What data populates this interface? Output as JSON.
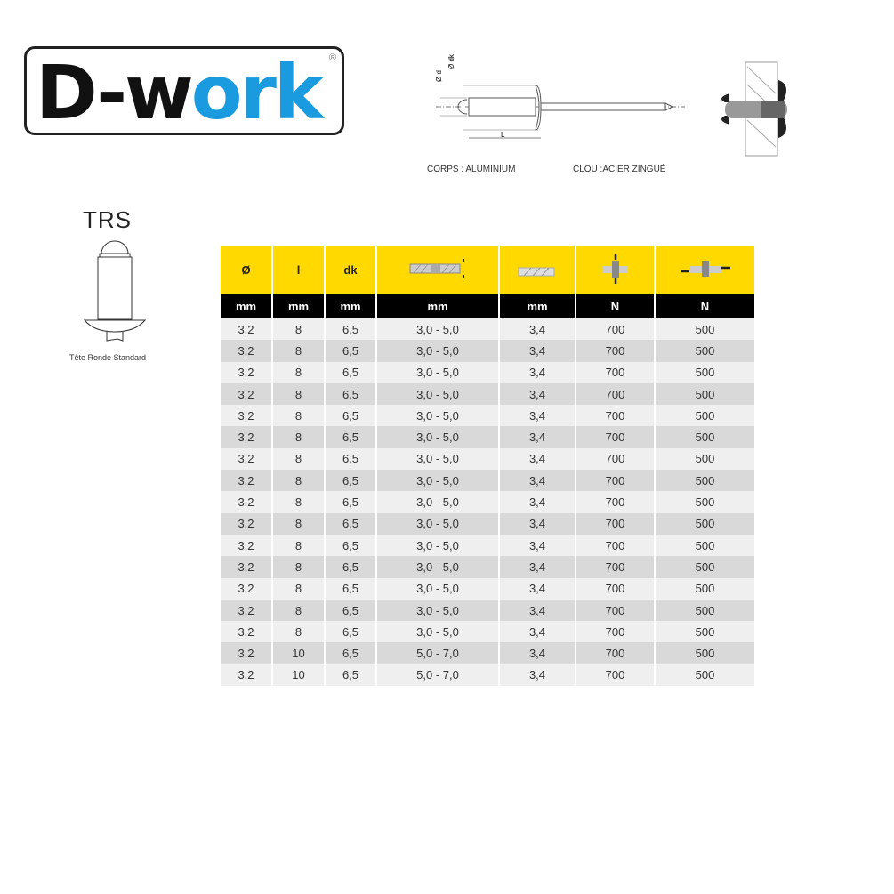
{
  "logo": {
    "part1": "D-w",
    "part2": "ork",
    "reg": "®",
    "brand_color": "#1a9be0"
  },
  "diagram": {
    "label_d": "Ø d",
    "label_dk": "Ø dk",
    "label_L": "L",
    "body_caption": "CORPS : ALUMINIUM",
    "nail_caption": "CLOU :ACIER ZINGUÉ"
  },
  "product": {
    "code": "TRS",
    "caption": "Tête Ronde Standard"
  },
  "table": {
    "header_symbols": [
      "Ø",
      "l",
      "dk",
      "grip-range-icon",
      "hole-diameter-icon",
      "tensile-strength-icon",
      "shear-strength-icon"
    ],
    "header_color": "#ffd900",
    "units": [
      "mm",
      "mm",
      "mm",
      "mm",
      "mm",
      "N",
      "N"
    ],
    "rows": [
      [
        "3,2",
        "8",
        "6,5",
        "3,0 - 5,0",
        "3,4",
        "700",
        "500"
      ],
      [
        "3,2",
        "8",
        "6,5",
        "3,0 - 5,0",
        "3,4",
        "700",
        "500"
      ],
      [
        "3,2",
        "8",
        "6,5",
        "3,0 - 5,0",
        "3,4",
        "700",
        "500"
      ],
      [
        "3,2",
        "8",
        "6,5",
        "3,0 - 5,0",
        "3,4",
        "700",
        "500"
      ],
      [
        "3,2",
        "8",
        "6,5",
        "3,0 - 5,0",
        "3,4",
        "700",
        "500"
      ],
      [
        "3,2",
        "8",
        "6,5",
        "3,0 - 5,0",
        "3,4",
        "700",
        "500"
      ],
      [
        "3,2",
        "8",
        "6,5",
        "3,0 - 5,0",
        "3,4",
        "700",
        "500"
      ],
      [
        "3,2",
        "8",
        "6,5",
        "3,0 - 5,0",
        "3,4",
        "700",
        "500"
      ],
      [
        "3,2",
        "8",
        "6,5",
        "3,0 - 5,0",
        "3,4",
        "700",
        "500"
      ],
      [
        "3,2",
        "8",
        "6,5",
        "3,0 - 5,0",
        "3,4",
        "700",
        "500"
      ],
      [
        "3,2",
        "8",
        "6,5",
        "3,0 - 5,0",
        "3,4",
        "700",
        "500"
      ],
      [
        "3,2",
        "8",
        "6,5",
        "3,0 - 5,0",
        "3,4",
        "700",
        "500"
      ],
      [
        "3,2",
        "8",
        "6,5",
        "3,0 - 5,0",
        "3,4",
        "700",
        "500"
      ],
      [
        "3,2",
        "8",
        "6,5",
        "3,0 - 5,0",
        "3,4",
        "700",
        "500"
      ],
      [
        "3,2",
        "8",
        "6,5",
        "3,0 - 5,0",
        "3,4",
        "700",
        "500"
      ],
      [
        "3,2",
        "10",
        "6,5",
        "5,0 - 7,0",
        "3,4",
        "700",
        "500"
      ],
      [
        "3,2",
        "10",
        "6,5",
        "5,0 - 7,0",
        "3,4",
        "700",
        "500"
      ]
    ]
  }
}
